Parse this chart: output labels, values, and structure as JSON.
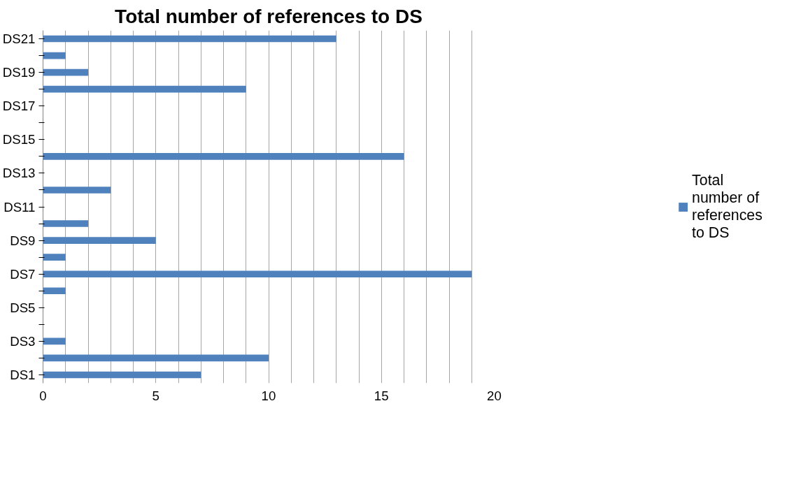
{
  "chart_data": {
    "type": "bar",
    "orientation": "horizontal",
    "title": "Total number of references to DS",
    "categories": [
      "DS21",
      null,
      "DS19",
      null,
      "DS17",
      null,
      "DS15",
      null,
      "DS13",
      null,
      "DS11",
      null,
      "DS9",
      null,
      "DS7",
      null,
      "DS5",
      null,
      "DS3",
      null,
      "DS1"
    ],
    "series": [
      {
        "name": "Total number of references to DS",
        "color": "#4f81bd",
        "values": [
          13,
          1,
          2,
          9,
          0,
          0,
          0,
          16,
          0,
          3,
          0,
          2,
          5,
          1,
          19,
          1,
          0,
          0,
          1,
          10,
          7
        ]
      }
    ],
    "xlim": [
      0,
      20
    ],
    "xticks": [
      0,
      {
        "value": 1,
        "label": null
      },
      {
        "value": 2,
        "label": null
      },
      {
        "value": 3,
        "label": null
      },
      {
        "value": 4,
        "label": null
      },
      5,
      {
        "value": 6,
        "label": null
      },
      {
        "value": 7,
        "label": null
      },
      {
        "value": 8,
        "label": null
      },
      {
        "value": 9,
        "label": null
      },
      10,
      {
        "value": 11,
        "label": null
      },
      {
        "value": 12,
        "label": null
      },
      {
        "value": 13,
        "label": null
      },
      {
        "value": 14,
        "label": null
      },
      15,
      {
        "value": 16,
        "label": null
      },
      {
        "value": 17,
        "label": null
      },
      {
        "value": 18,
        "label": null
      },
      {
        "value": 19,
        "label": null
      },
      20
    ],
    "grid": "x",
    "legend": "right"
  }
}
